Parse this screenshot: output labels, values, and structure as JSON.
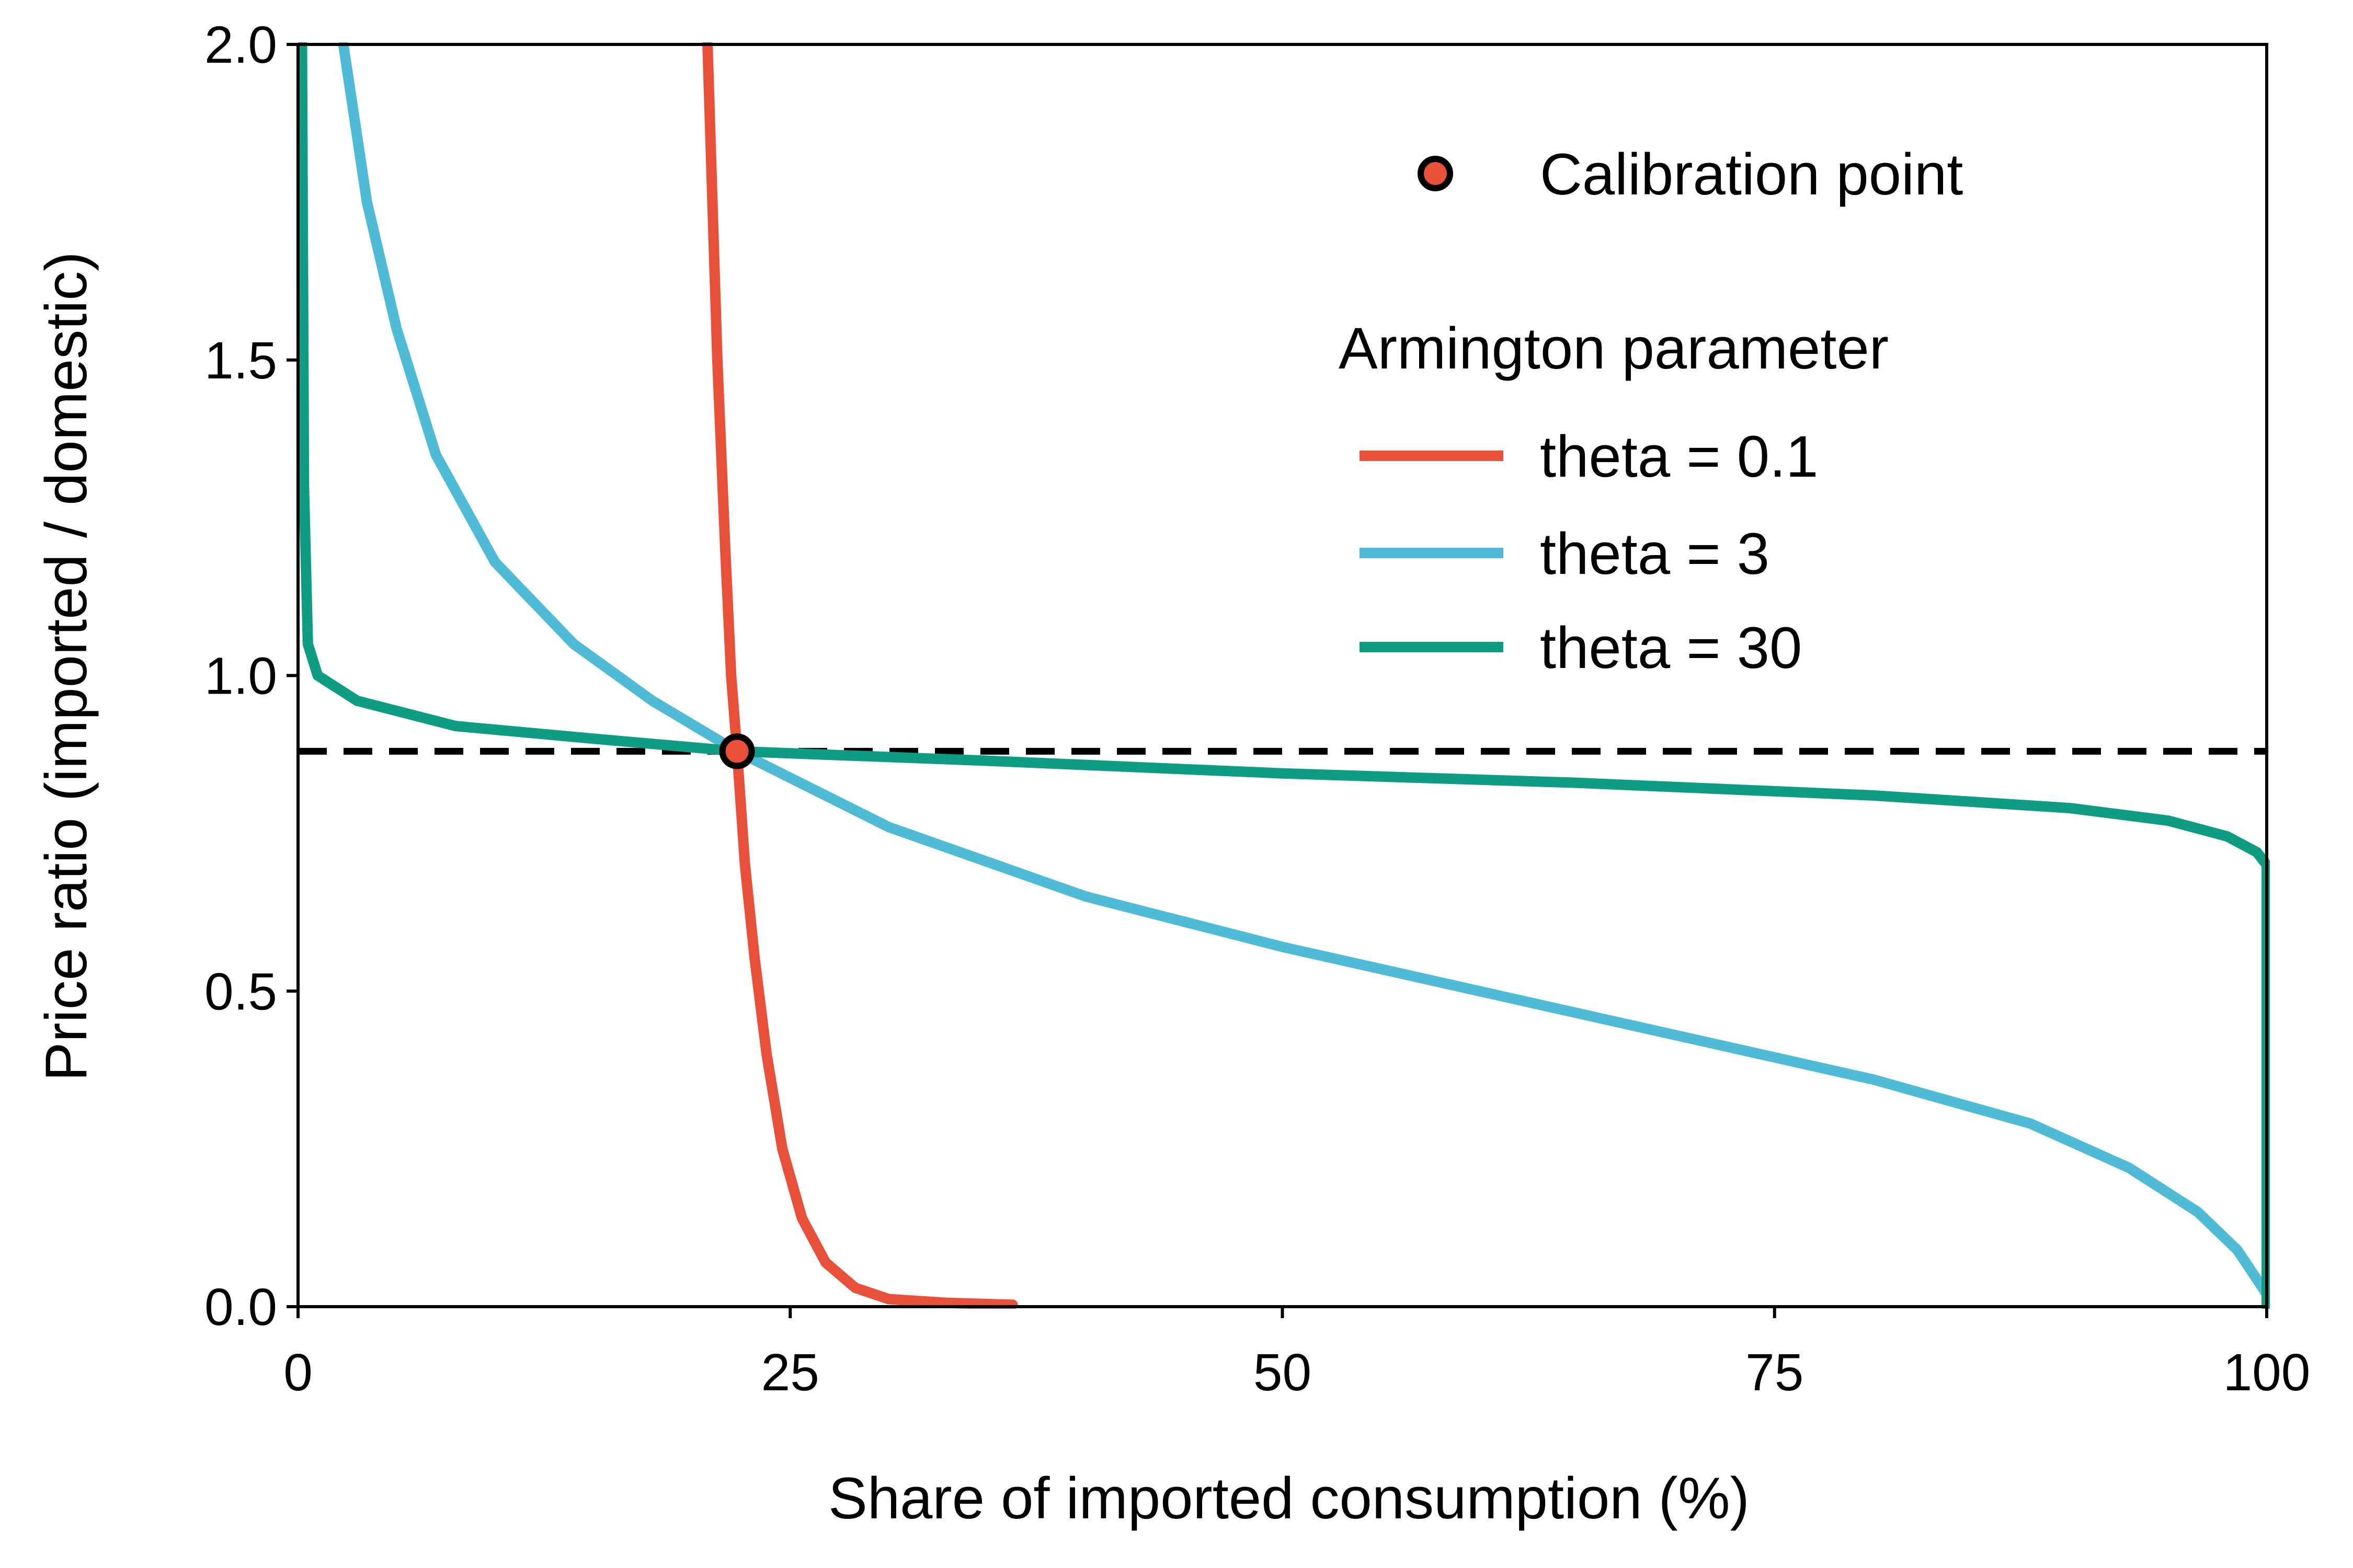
{
  "chart_data": {
    "type": "line",
    "xlabel": "Share of imported consumption (%)",
    "ylabel": "Price ratio (imported / domestic)",
    "xlim": [
      0,
      100
    ],
    "ylim": [
      0,
      2.0
    ],
    "x_ticks": [
      "0",
      "25",
      "50",
      "75",
      "100"
    ],
    "y_ticks": [
      "0.0",
      "0.5",
      "1.0",
      "1.5",
      "2.0"
    ],
    "grid": false,
    "legend": {
      "placement": "top-right",
      "calibration_label": "Calibration point",
      "group_title": "Armington parameter"
    },
    "calibration_point": {
      "x": 22.3,
      "y": 0.88,
      "color": "#E8503A"
    },
    "reference_line": {
      "y": 0.88,
      "style": "dashed"
    },
    "series": [
      {
        "name": "theta = 0.1",
        "color": "#E8503A",
        "points": [
          [
            20.8,
            2.0
          ],
          [
            21.3,
            1.5
          ],
          [
            21.7,
            1.2
          ],
          [
            22.0,
            1.0
          ],
          [
            22.3,
            0.88
          ],
          [
            22.7,
            0.7
          ],
          [
            23.2,
            0.55
          ],
          [
            23.8,
            0.4
          ],
          [
            24.6,
            0.25
          ],
          [
            25.6,
            0.14
          ],
          [
            26.8,
            0.07
          ],
          [
            28.3,
            0.03
          ],
          [
            30.0,
            0.012
          ],
          [
            33.0,
            0.006
          ],
          [
            36.3,
            0.003
          ]
        ]
      },
      {
        "name": "theta = 3",
        "color": "#4FBBD6",
        "points": [
          [
            2.3,
            2.0
          ],
          [
            3.5,
            1.75
          ],
          [
            5.0,
            1.55
          ],
          [
            7.0,
            1.35
          ],
          [
            10.0,
            1.18
          ],
          [
            14.0,
            1.05
          ],
          [
            18.0,
            0.96
          ],
          [
            22.3,
            0.88
          ],
          [
            30.0,
            0.76
          ],
          [
            40.0,
            0.65
          ],
          [
            50.0,
            0.57
          ],
          [
            60.0,
            0.5
          ],
          [
            70.0,
            0.43
          ],
          [
            80.0,
            0.36
          ],
          [
            88.0,
            0.29
          ],
          [
            93.0,
            0.22
          ],
          [
            96.5,
            0.15
          ],
          [
            98.5,
            0.09
          ],
          [
            100.0,
            0.02
          ]
        ]
      },
      {
        "name": "theta = 30",
        "color": "#0E9C82",
        "points": [
          [
            0.2,
            2.0
          ],
          [
            0.3,
            1.3
          ],
          [
            0.5,
            1.05
          ],
          [
            1.0,
            1.0
          ],
          [
            3.0,
            0.96
          ],
          [
            8.0,
            0.92
          ],
          [
            15.0,
            0.9
          ],
          [
            22.3,
            0.88
          ],
          [
            35.0,
            0.865
          ],
          [
            50.0,
            0.845
          ],
          [
            65.0,
            0.83
          ],
          [
            80.0,
            0.81
          ],
          [
            90.0,
            0.79
          ],
          [
            95.0,
            0.77
          ],
          [
            98.0,
            0.745
          ],
          [
            99.5,
            0.72
          ],
          [
            100.0,
            0.7
          ],
          [
            100.0,
            0.0
          ]
        ]
      }
    ]
  }
}
